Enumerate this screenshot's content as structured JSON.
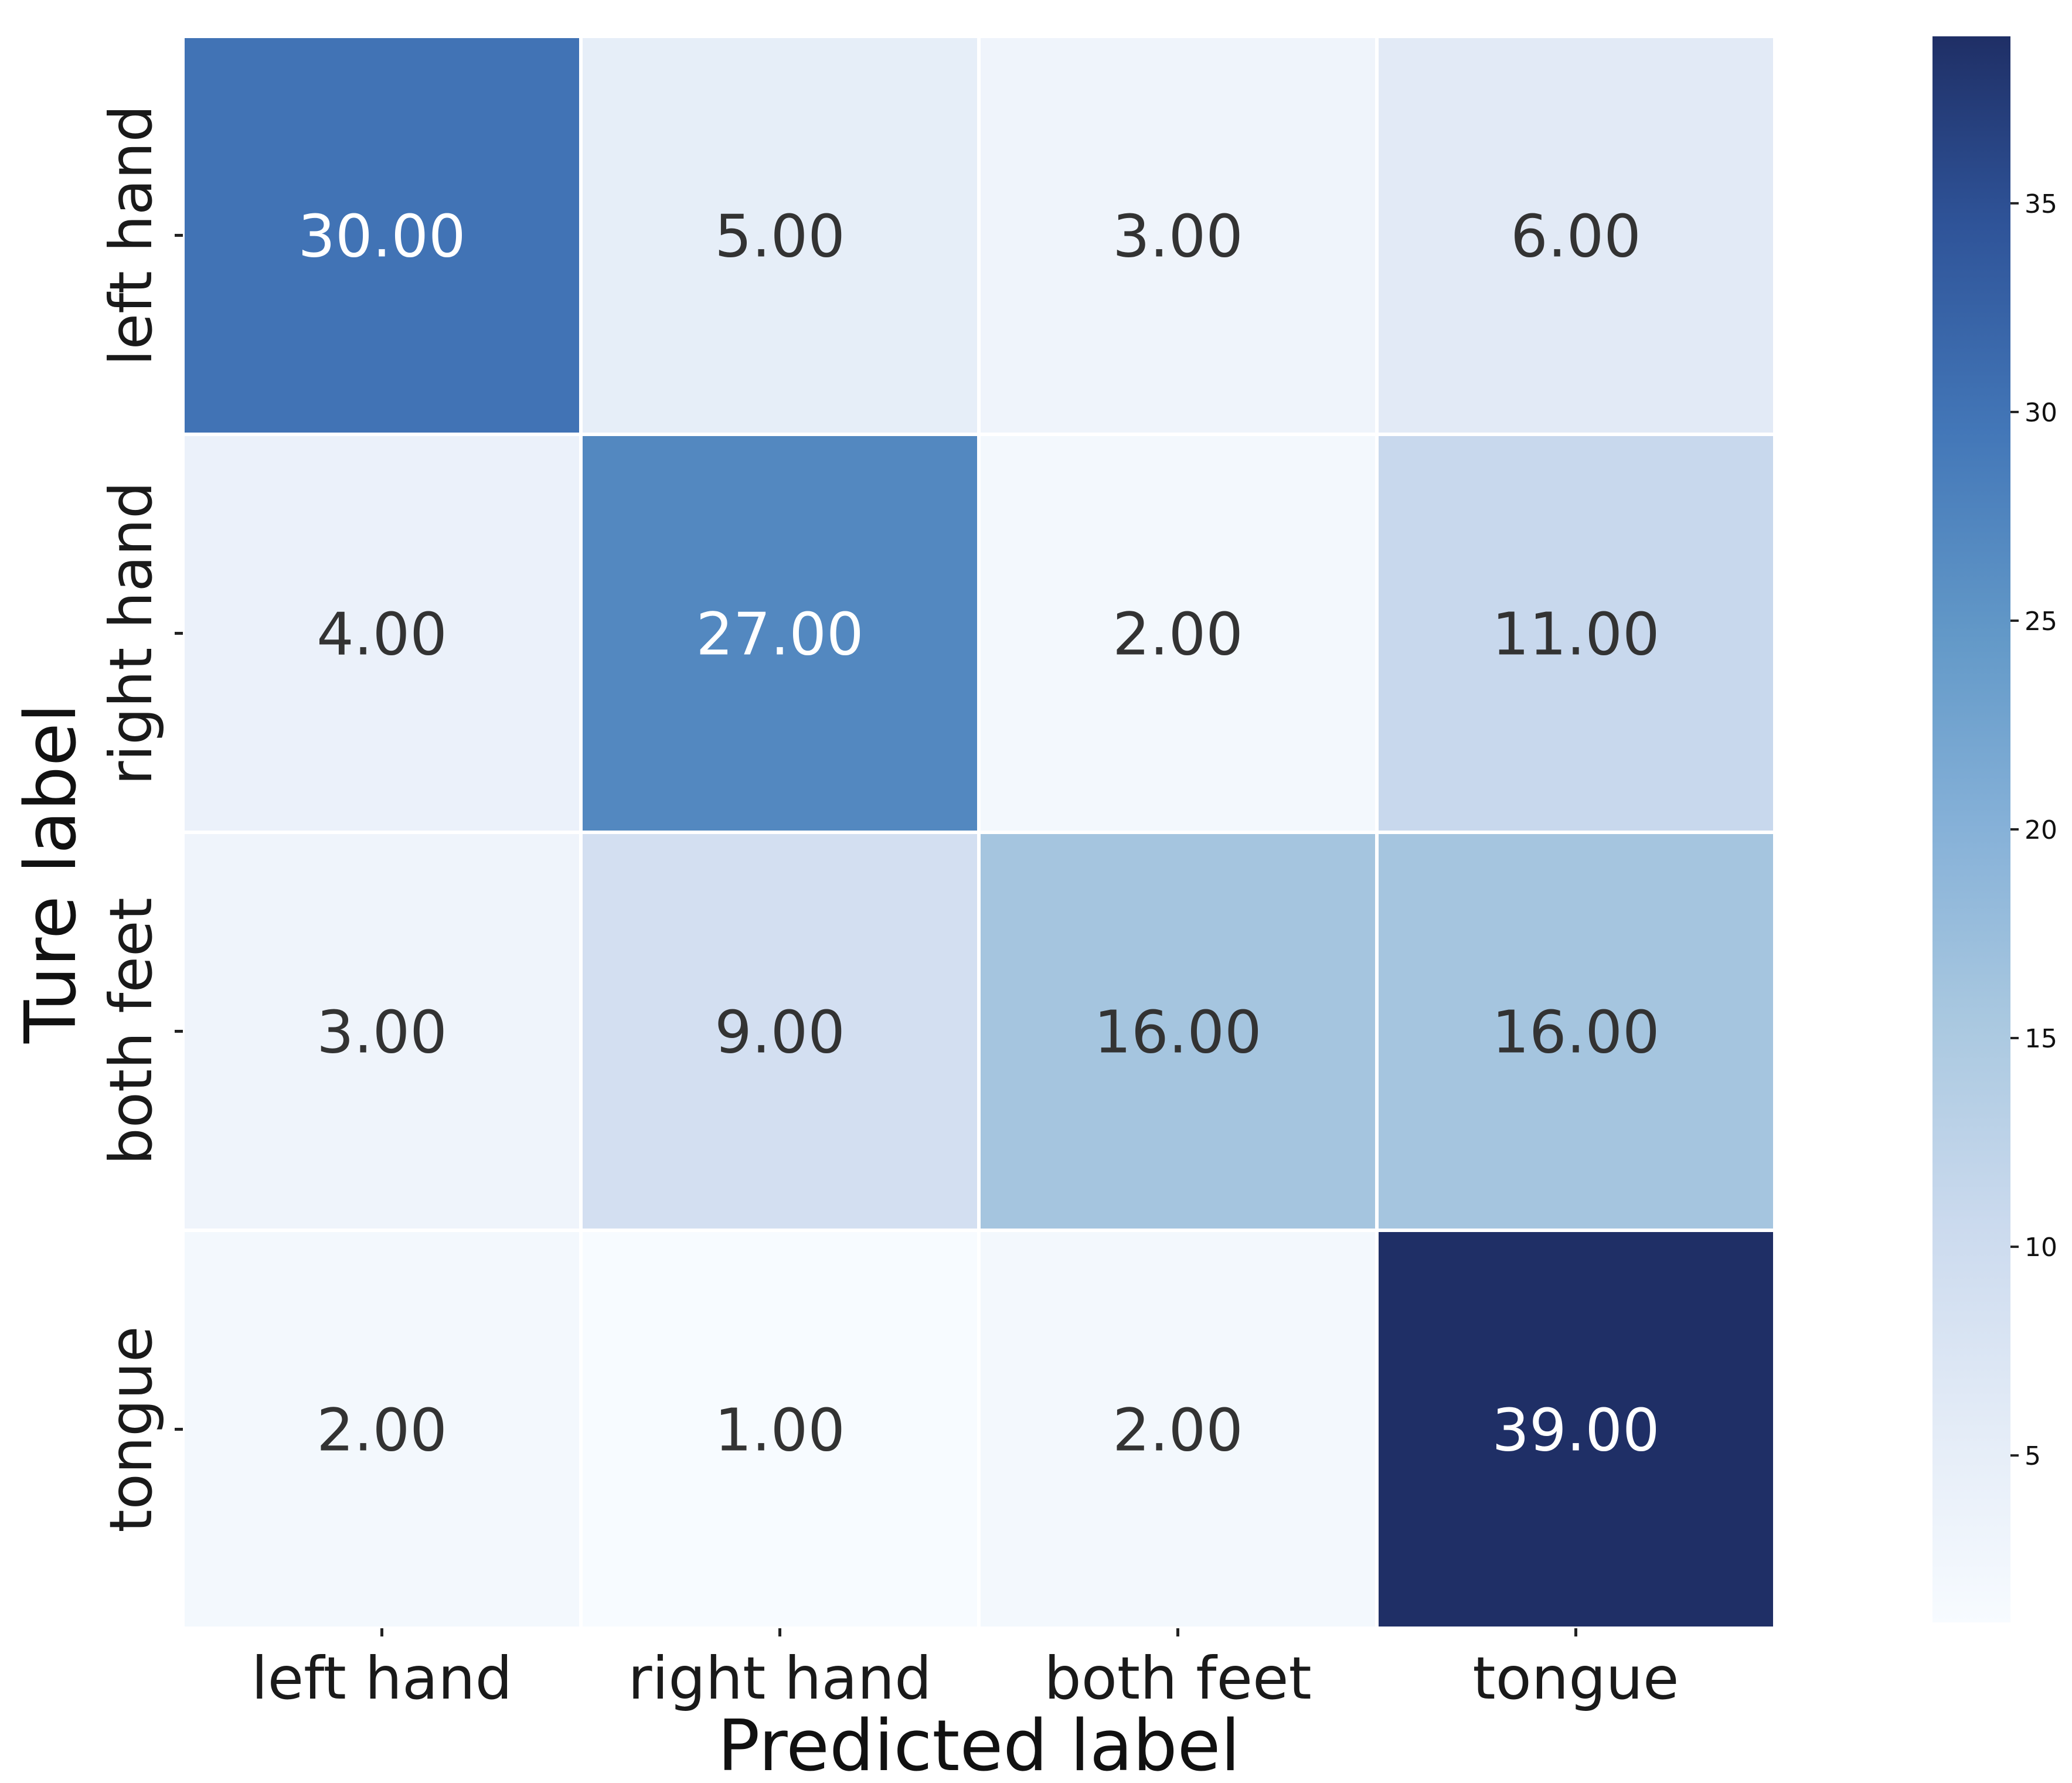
{
  "chart_data": {
    "type": "heatmap",
    "title": "",
    "xlabel": "Predicted label",
    "ylabel": "Ture label",
    "x_categories": [
      "left hand",
      "right hand",
      "both feet",
      "tongue"
    ],
    "y_categories": [
      "left hand",
      "right hand",
      "both feet",
      "tongue"
    ],
    "values": [
      [
        30,
        5,
        3,
        6
      ],
      [
        4,
        27,
        2,
        11
      ],
      [
        3,
        9,
        16,
        16
      ],
      [
        2,
        1,
        2,
        39
      ]
    ],
    "value_labels": [
      [
        "30.00",
        "5.00",
        "3.00",
        "6.00"
      ],
      [
        "4.00",
        "27.00",
        "2.00",
        "11.00"
      ],
      [
        "3.00",
        "9.00",
        "16.00",
        "16.00"
      ],
      [
        "2.00",
        "1.00",
        "2.00",
        "39.00"
      ]
    ],
    "colormap": "Blues",
    "vmin": 1,
    "vmax": 39,
    "colorbar_ticks": [
      5,
      10,
      15,
      20,
      25,
      30,
      35
    ],
    "colorbar_tick_labels": [
      "5",
      "10",
      "15",
      "20",
      "25",
      "30",
      "35"
    ],
    "grid": false,
    "legend": "colorbar-right"
  },
  "colors": {
    "cmap_low": "#f7fbff",
    "cmap_high": "#1f2f66",
    "text_dark": "#333333",
    "text_light": "#ffffff",
    "cell_border": "#ffffff"
  }
}
